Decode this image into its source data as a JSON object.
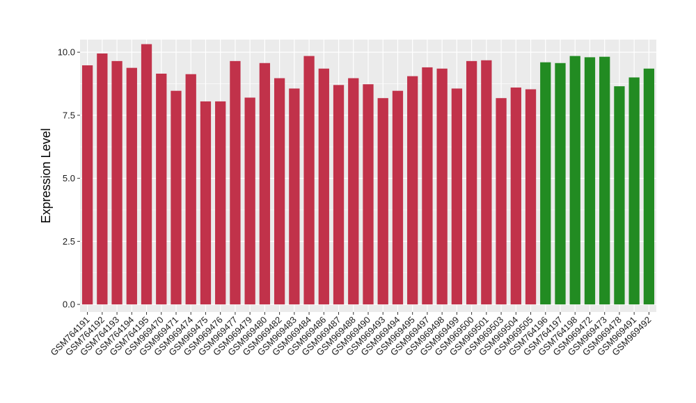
{
  "chart_data": {
    "type": "bar",
    "title": "",
    "xlabel": "",
    "ylabel": "Expression Level",
    "ylim": [
      -0.3,
      10.5
    ],
    "yticks": [
      0.0,
      2.5,
      5.0,
      7.5,
      10.0
    ],
    "ytick_labels": [
      "0.0",
      "2.5",
      "5.0",
      "7.5",
      "10.0"
    ],
    "grid": true,
    "legend": "none",
    "panel_background": "#ebebeb",
    "grid_color": "#ffffff",
    "categories": [
      "GSM764191",
      "GSM764192",
      "GSM764193",
      "GSM764194",
      "GSM764195",
      "GSM969470",
      "GSM969471",
      "GSM969474",
      "GSM969475",
      "GSM969476",
      "GSM969477",
      "GSM969479",
      "GSM969480",
      "GSM969482",
      "GSM969483",
      "GSM969484",
      "GSM969486",
      "GSM969487",
      "GSM969488",
      "GSM969490",
      "GSM969493",
      "GSM969494",
      "GSM969495",
      "GSM969497",
      "GSM969498",
      "GSM969499",
      "GSM969500",
      "GSM969501",
      "GSM969503",
      "GSM969504",
      "GSM969505",
      "GSM764196",
      "GSM764197",
      "GSM764198",
      "GSM969472",
      "GSM969473",
      "GSM969478",
      "GSM969491",
      "GSM969492"
    ],
    "values": [
      9.48,
      9.95,
      9.65,
      9.38,
      10.32,
      9.15,
      8.47,
      9.13,
      8.05,
      8.05,
      9.65,
      8.2,
      9.57,
      8.97,
      8.56,
      9.85,
      9.35,
      8.7,
      8.97,
      8.73,
      8.18,
      8.47,
      9.05,
      9.4,
      9.35,
      8.56,
      9.65,
      9.68,
      8.18,
      8.6,
      8.53,
      9.6,
      9.57,
      9.85,
      9.8,
      9.82,
      8.65,
      9.0,
      9.35
    ],
    "groups": [
      "a",
      "a",
      "a",
      "a",
      "a",
      "a",
      "a",
      "a",
      "a",
      "a",
      "a",
      "a",
      "a",
      "a",
      "a",
      "a",
      "a",
      "a",
      "a",
      "a",
      "a",
      "a",
      "a",
      "a",
      "a",
      "a",
      "a",
      "a",
      "a",
      "a",
      "a",
      "b",
      "b",
      "b",
      "b",
      "b",
      "b",
      "b",
      "b"
    ],
    "group_colors": {
      "a": "#c1324a",
      "b": "#228b22"
    }
  }
}
